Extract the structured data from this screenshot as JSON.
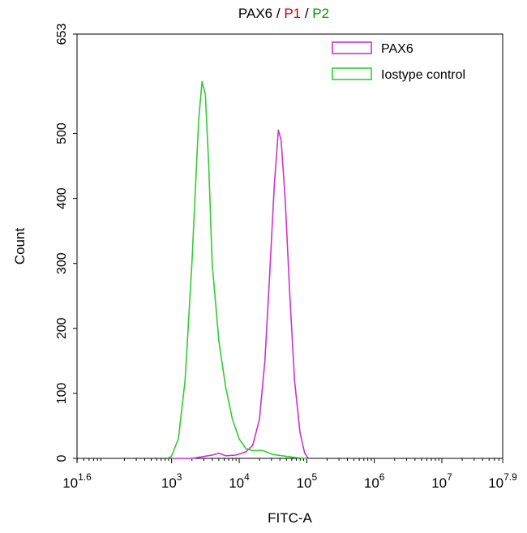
{
  "chart_data": {
    "type": "line",
    "title": {
      "parts": [
        {
          "text": "PAX6",
          "color": "#000000"
        },
        {
          "text": " / ",
          "color": "#000000"
        },
        {
          "text": "P1",
          "color": "#cc0000"
        },
        {
          "text": " / ",
          "color": "#000000"
        },
        {
          "text": "P2",
          "color": "#009900"
        }
      ]
    },
    "xlabel": "FITC-A",
    "ylabel": "Count",
    "x_scale": "log10",
    "xlim": [
      1.6,
      7.9
    ],
    "ylim": [
      0,
      653
    ],
    "x_ticks": [
      {
        "value": 1.6,
        "base": "10",
        "exp": "1.6"
      },
      {
        "value": 3,
        "base": "10",
        "exp": "3"
      },
      {
        "value": 4,
        "base": "10",
        "exp": "4"
      },
      {
        "value": 5,
        "base": "10",
        "exp": "5"
      },
      {
        "value": 6,
        "base": "10",
        "exp": "6"
      },
      {
        "value": 7,
        "base": "10",
        "exp": "7"
      },
      {
        "value": 7.9,
        "base": "10",
        "exp": "7.9"
      }
    ],
    "y_ticks": [
      0,
      100,
      200,
      300,
      400,
      500,
      653
    ],
    "grid": false,
    "legend_position": "top-right",
    "series": [
      {
        "name": "PAX6",
        "color": "#cc33cc",
        "points": [
          [
            3.0,
            0
          ],
          [
            3.3,
            0
          ],
          [
            3.6,
            5
          ],
          [
            3.7,
            8
          ],
          [
            3.8,
            4
          ],
          [
            3.95,
            5
          ],
          [
            4.1,
            10
          ],
          [
            4.2,
            20
          ],
          [
            4.3,
            60
          ],
          [
            4.38,
            150
          ],
          [
            4.45,
            280
          ],
          [
            4.52,
            420
          ],
          [
            4.58,
            505
          ],
          [
            4.62,
            490
          ],
          [
            4.68,
            400
          ],
          [
            4.75,
            250
          ],
          [
            4.82,
            120
          ],
          [
            4.9,
            40
          ],
          [
            4.97,
            8
          ],
          [
            5.02,
            0
          ]
        ]
      },
      {
        "name": "Iostype control",
        "color": "#33cc33",
        "points": [
          [
            2.95,
            0
          ],
          [
            3.0,
            4
          ],
          [
            3.1,
            30
          ],
          [
            3.2,
            120
          ],
          [
            3.3,
            300
          ],
          [
            3.4,
            520
          ],
          [
            3.45,
            580
          ],
          [
            3.5,
            560
          ],
          [
            3.55,
            450
          ],
          [
            3.6,
            300
          ],
          [
            3.7,
            180
          ],
          [
            3.8,
            110
          ],
          [
            3.9,
            60
          ],
          [
            4.0,
            30
          ],
          [
            4.1,
            15
          ],
          [
            4.2,
            12
          ],
          [
            4.35,
            12
          ],
          [
            4.5,
            6
          ],
          [
            4.7,
            3
          ],
          [
            4.85,
            1
          ],
          [
            5.0,
            0
          ]
        ]
      }
    ]
  }
}
